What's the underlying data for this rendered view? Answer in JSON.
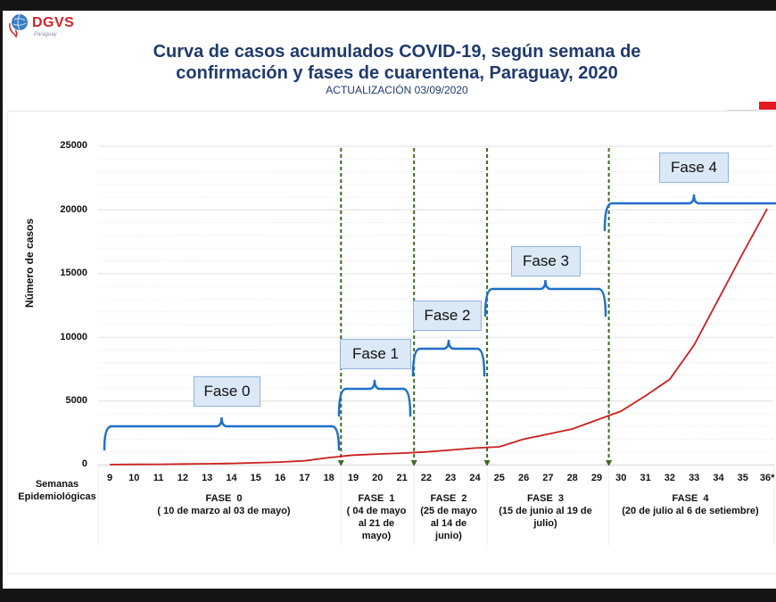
{
  "header": {
    "logo_text": "DGVS",
    "logo_sub": "Paraguay",
    "title_line1": "Curva de casos acumulados COVID-19, según semana de",
    "title_line2": "confirmación y fases de cuarentena, Paraguay, 2020",
    "subtitle": "ACTUALIZACIÓN 03/09/2020"
  },
  "colors": {
    "title": "#1f3a6e",
    "curve": "#cc1f1f",
    "brace": "#1f6fc8",
    "phase_divider": "#3b6a22",
    "callout_fill": "#dbe8f6",
    "accent_red": "#e31b23"
  },
  "axes": {
    "ylabel": "Número de casos",
    "xlabel_line1": "Semanas",
    "xlabel_line2": "Epidemiológicas",
    "yticks": [
      "25000",
      "20000",
      "15000",
      "10000",
      "5000",
      "0"
    ],
    "xticks": [
      "9",
      "10",
      "11",
      "12",
      "13",
      "14",
      "15",
      "16",
      "17",
      "18",
      "19",
      "20",
      "21",
      "22",
      "23",
      "24",
      "25",
      "26",
      "27",
      "28",
      "29",
      "30",
      "31",
      "32",
      "33",
      "34",
      "35",
      "36*"
    ]
  },
  "phases": [
    {
      "callout": "Fase 0",
      "name": "FASE  0",
      "period_l1": "( 10 de marzo al 03 de mayo)",
      "period_l2": "",
      "period_l3": ""
    },
    {
      "callout": "Fase 1",
      "name": "FASE  1",
      "period_l1": "( 04 de mayo",
      "period_l2": "al 21 de",
      "period_l3": "mayo)"
    },
    {
      "callout": "Fase 2",
      "name": "FASE   2",
      "period_l1": "(25 de mayo",
      "period_l2": "al 14 de",
      "period_l3": "junio)"
    },
    {
      "callout": "Fase 3",
      "name": "FASE   3",
      "period_l1": "(15 de junio al 19 de",
      "period_l2": "julio)",
      "period_l3": ""
    },
    {
      "callout": "Fase 4",
      "name": "FASE   4",
      "period_l1": "(20 de julio al 6 de setiembre)",
      "period_l2": "",
      "period_l3": ""
    }
  ],
  "chart_data": {
    "type": "line",
    "title": "Curva de casos acumulados COVID-19, según semana de confirmación y fases de cuarentena, Paraguay, 2020",
    "subtitle": "ACTUALIZACIÓN 03/09/2020",
    "xlabel": "Semanas Epidemiológicas",
    "ylabel": "Número de casos",
    "ylim": [
      0,
      25000
    ],
    "yticks": [
      0,
      5000,
      10000,
      15000,
      20000,
      25000
    ],
    "grid": true,
    "legend": null,
    "x": [
      "9",
      "10",
      "11",
      "12",
      "13",
      "14",
      "15",
      "16",
      "17",
      "18",
      "19",
      "20",
      "21",
      "22",
      "23",
      "24",
      "25",
      "26",
      "27",
      "28",
      "29",
      "30",
      "31",
      "32",
      "33",
      "34",
      "35",
      "36*"
    ],
    "series": [
      {
        "name": "Casos acumulados",
        "values": [
          10,
          20,
          30,
          50,
          70,
          100,
          150,
          200,
          300,
          550,
          750,
          830,
          900,
          1000,
          1150,
          1300,
          1400,
          2000,
          2400,
          2800,
          3500,
          4200,
          5400,
          6700,
          9400,
          13000,
          16600,
          20100
        ]
      }
    ],
    "annotations": [
      {
        "label": "Fase 0",
        "weeks": "9-18",
        "dates": "10 de marzo al 03 de mayo"
      },
      {
        "label": "Fase 1",
        "weeks": "19-21",
        "dates": "04 de mayo al 21 de mayo"
      },
      {
        "label": "Fase 2",
        "weeks": "22-24",
        "dates": "25 de mayo al 14 de junio"
      },
      {
        "label": "Fase 3",
        "weeks": "25-29",
        "dates": "15 de junio al 19 de julio"
      },
      {
        "label": "Fase 4",
        "weeks": "30-36",
        "dates": "20 de julio al 6 de setiembre"
      }
    ],
    "phase_dividers_after_week": [
      18,
      21,
      24,
      29
    ]
  }
}
